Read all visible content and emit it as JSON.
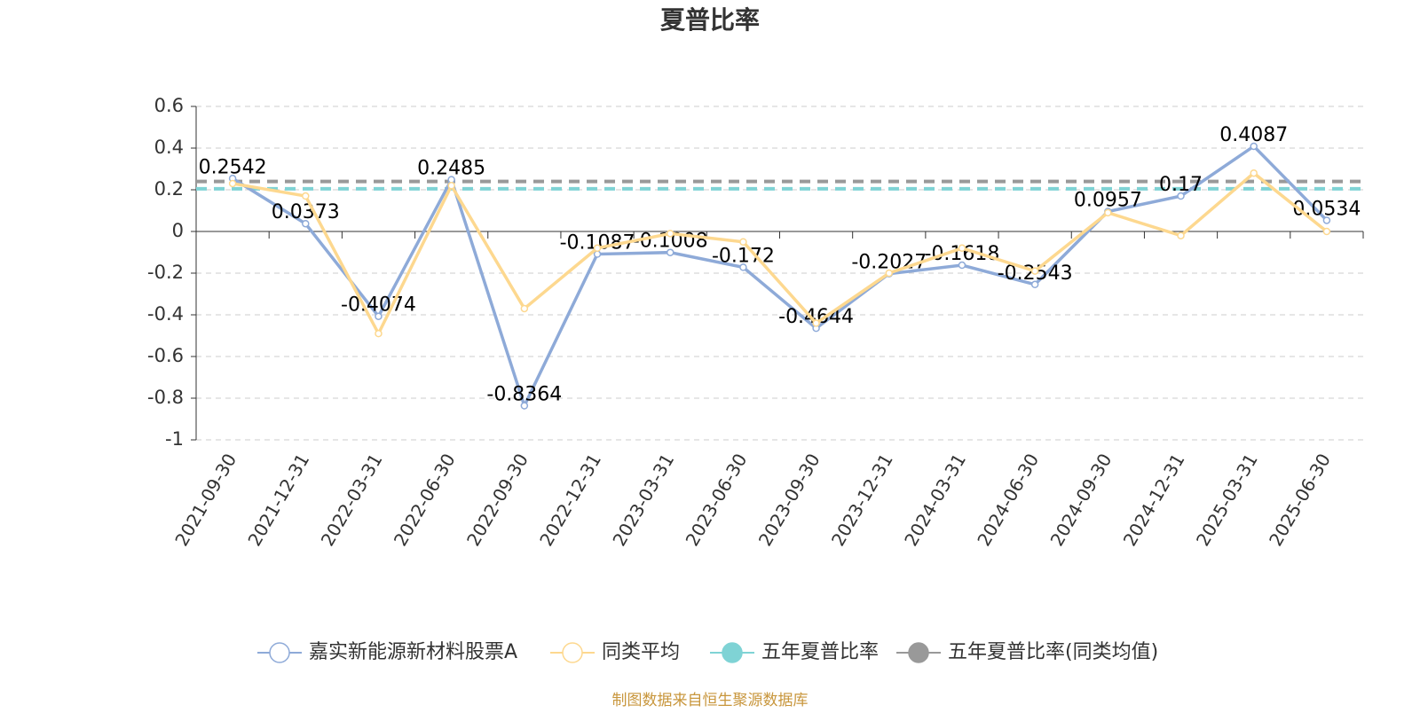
{
  "chart_data": {
    "type": "line",
    "title": "夏普比率",
    "categories": [
      "2021-09-30",
      "2021-12-31",
      "2022-03-31",
      "2022-06-30",
      "2022-09-30",
      "2022-12-31",
      "2023-03-31",
      "2023-06-30",
      "2023-09-30",
      "2023-12-31",
      "2024-03-31",
      "2024-06-30",
      "2024-09-30",
      "2024-12-31",
      "2025-03-31",
      "2025-06-30"
    ],
    "series": [
      {
        "name": "嘉实新能源新材料股票A",
        "color": "#8eaad8",
        "values": [
          0.2542,
          0.0373,
          -0.4074,
          0.2485,
          -0.8364,
          -0.1087,
          -0.1008,
          -0.172,
          -0.4644,
          -0.2027,
          -0.1618,
          -0.2543,
          0.0957,
          0.17,
          0.4087,
          0.0534
        ]
      },
      {
        "name": "同类平均",
        "color": "#fdd88f",
        "values": [
          0.23,
          0.17,
          -0.49,
          0.22,
          -0.37,
          -0.08,
          -0.01,
          -0.05,
          -0.44,
          -0.2,
          -0.08,
          -0.19,
          0.09,
          -0.02,
          0.28,
          0.0
        ]
      },
      {
        "name": "五年夏普比率",
        "color": "#7fd3d5",
        "value": 0.205
      },
      {
        "name": "五年夏普比率(同类均值)",
        "color": "#999999",
        "value": 0.24
      }
    ],
    "ylim": [
      -1,
      0.6
    ],
    "yticks": [
      -1,
      -0.8,
      -0.6,
      -0.4,
      -0.2,
      0,
      0.2,
      0.4,
      0.6
    ],
    "grid": true,
    "source": "制图数据来自恒生聚源数据库"
  }
}
